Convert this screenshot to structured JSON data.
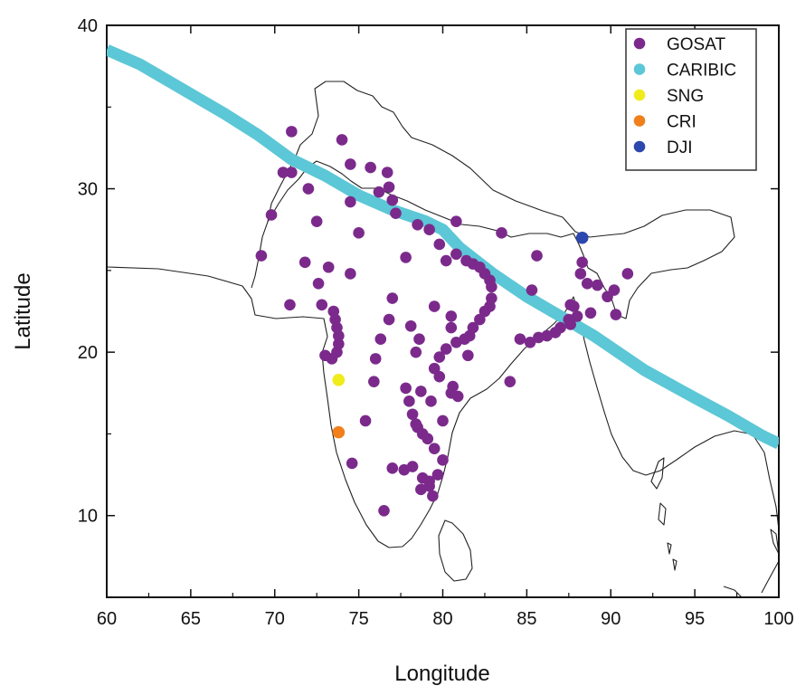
{
  "chart_data": {
    "type": "scatter",
    "title": "",
    "xlabel": "Longitude",
    "ylabel": "Latitude",
    "xlim": [
      60,
      100
    ],
    "ylim": [
      5,
      40
    ],
    "x_ticks": [
      60,
      65,
      70,
      75,
      80,
      85,
      90,
      95,
      100
    ],
    "y_ticks": [
      10,
      20,
      30,
      40
    ],
    "grid": false,
    "legend_position": "top-right",
    "series": [
      {
        "name": "GOSAT",
        "color": "#7b2a8c",
        "marker": "dot",
        "points": [
          [
            71.0,
            33.5
          ],
          [
            74.0,
            33.0
          ],
          [
            70.5,
            31.0
          ],
          [
            71.0,
            31.0
          ],
          [
            74.5,
            31.5
          ],
          [
            75.7,
            31.3
          ],
          [
            76.7,
            31.0
          ],
          [
            72.0,
            30.0
          ],
          [
            76.2,
            29.8
          ],
          [
            76.8,
            30.1
          ],
          [
            77.0,
            29.3
          ],
          [
            69.8,
            28.4
          ],
          [
            72.5,
            28.0
          ],
          [
            74.5,
            29.2
          ],
          [
            75.0,
            27.3
          ],
          [
            77.2,
            28.5
          ],
          [
            78.5,
            27.8
          ],
          [
            79.2,
            27.5
          ],
          [
            80.8,
            28.0
          ],
          [
            83.5,
            27.3
          ],
          [
            69.2,
            25.9
          ],
          [
            71.8,
            25.5
          ],
          [
            73.2,
            25.2
          ],
          [
            74.5,
            24.8
          ],
          [
            72.6,
            24.2
          ],
          [
            77.8,
            25.8
          ],
          [
            79.8,
            26.6
          ],
          [
            80.2,
            25.6
          ],
          [
            80.8,
            26.0
          ],
          [
            81.4,
            25.6
          ],
          [
            81.8,
            25.4
          ],
          [
            82.2,
            25.2
          ],
          [
            82.5,
            24.8
          ],
          [
            82.8,
            24.4
          ],
          [
            82.9,
            24.0
          ],
          [
            82.9,
            23.3
          ],
          [
            82.8,
            22.8
          ],
          [
            82.5,
            22.5
          ],
          [
            82.2,
            22.0
          ],
          [
            81.8,
            21.5
          ],
          [
            81.6,
            21.0
          ],
          [
            81.3,
            20.8
          ],
          [
            80.8,
            20.6
          ],
          [
            80.2,
            20.2
          ],
          [
            79.8,
            19.7
          ],
          [
            79.5,
            19.0
          ],
          [
            79.8,
            18.5
          ],
          [
            80.5,
            21.5
          ],
          [
            81.5,
            19.8
          ],
          [
            79.5,
            22.8
          ],
          [
            80.5,
            22.2
          ],
          [
            77.0,
            23.3
          ],
          [
            76.3,
            20.8
          ],
          [
            78.1,
            21.6
          ],
          [
            78.6,
            20.8
          ],
          [
            78.4,
            20.0
          ],
          [
            77.8,
            17.8
          ],
          [
            78.0,
            17.0
          ],
          [
            78.7,
            17.6
          ],
          [
            79.3,
            17.0
          ],
          [
            80.5,
            17.5
          ],
          [
            80.9,
            17.3
          ],
          [
            78.2,
            16.2
          ],
          [
            78.4,
            15.6
          ],
          [
            78.5,
            15.4
          ],
          [
            78.8,
            15.0
          ],
          [
            79.1,
            14.7
          ],
          [
            79.5,
            14.1
          ],
          [
            80.0,
            13.4
          ],
          [
            79.7,
            12.5
          ],
          [
            79.2,
            12.1
          ],
          [
            78.8,
            12.3
          ],
          [
            78.2,
            13.0
          ],
          [
            77.7,
            12.8
          ],
          [
            77.0,
            12.9
          ],
          [
            78.7,
            11.6
          ],
          [
            79.2,
            11.8
          ],
          [
            79.4,
            11.2
          ],
          [
            76.0,
            19.6
          ],
          [
            75.9,
            18.2
          ],
          [
            75.4,
            15.8
          ],
          [
            74.6,
            13.2
          ],
          [
            76.5,
            10.3
          ],
          [
            73.5,
            22.5
          ],
          [
            73.6,
            22.0
          ],
          [
            73.7,
            21.5
          ],
          [
            73.8,
            21.0
          ],
          [
            73.8,
            20.5
          ],
          [
            73.7,
            20.0
          ],
          [
            73.4,
            19.6
          ],
          [
            73.0,
            19.8
          ],
          [
            72.8,
            22.9
          ],
          [
            70.9,
            22.9
          ],
          [
            84.0,
            18.2
          ],
          [
            84.6,
            20.8
          ],
          [
            85.2,
            20.6
          ],
          [
            85.7,
            20.9
          ],
          [
            86.2,
            21.0
          ],
          [
            86.7,
            21.2
          ],
          [
            87.0,
            21.5
          ],
          [
            87.6,
            21.7
          ],
          [
            87.5,
            22.0
          ],
          [
            88.0,
            22.2
          ],
          [
            87.8,
            22.8
          ],
          [
            88.2,
            24.8
          ],
          [
            88.6,
            24.2
          ],
          [
            89.2,
            24.1
          ],
          [
            89.8,
            23.4
          ],
          [
            90.2,
            23.8
          ],
          [
            90.3,
            22.3
          ],
          [
            91.0,
            24.8
          ],
          [
            85.6,
            25.9
          ],
          [
            85.3,
            23.8
          ],
          [
            87.6,
            22.9
          ],
          [
            88.3,
            25.5
          ],
          [
            88.8,
            22.4
          ],
          [
            80.0,
            15.8
          ],
          [
            80.6,
            17.9
          ],
          [
            76.8,
            22.0
          ]
        ]
      },
      {
        "name": "CARIBIC",
        "color": "#5cc7d6",
        "marker": "thick-line",
        "points": [
          [
            60.0,
            38.5
          ],
          [
            62.0,
            37.6
          ],
          [
            65.0,
            35.8
          ],
          [
            67.0,
            34.6
          ],
          [
            69.0,
            33.3
          ],
          [
            71.0,
            31.8
          ],
          [
            73.0,
            30.8
          ],
          [
            75.0,
            29.6
          ],
          [
            77.0,
            28.7
          ],
          [
            79.0,
            28.0
          ],
          [
            80.0,
            27.5
          ],
          [
            81.0,
            26.4
          ],
          [
            83.0,
            24.8
          ],
          [
            85.0,
            23.4
          ],
          [
            87.0,
            22.2
          ],
          [
            89.0,
            21.0
          ],
          [
            92.0,
            18.9
          ],
          [
            95.0,
            17.2
          ],
          [
            97.0,
            16.1
          ],
          [
            99.0,
            14.9
          ],
          [
            100.0,
            14.4
          ]
        ]
      },
      {
        "name": "SNG",
        "color": "#f0eb1a",
        "marker": "dot",
        "points": [
          [
            73.8,
            18.3
          ]
        ]
      },
      {
        "name": "CRI",
        "color": "#f07f1c",
        "marker": "dot",
        "points": [
          [
            73.8,
            15.1
          ]
        ]
      },
      {
        "name": "DJI",
        "color": "#2c47ad",
        "marker": "dot",
        "points": [
          [
            88.3,
            27.0
          ]
        ]
      }
    ]
  }
}
